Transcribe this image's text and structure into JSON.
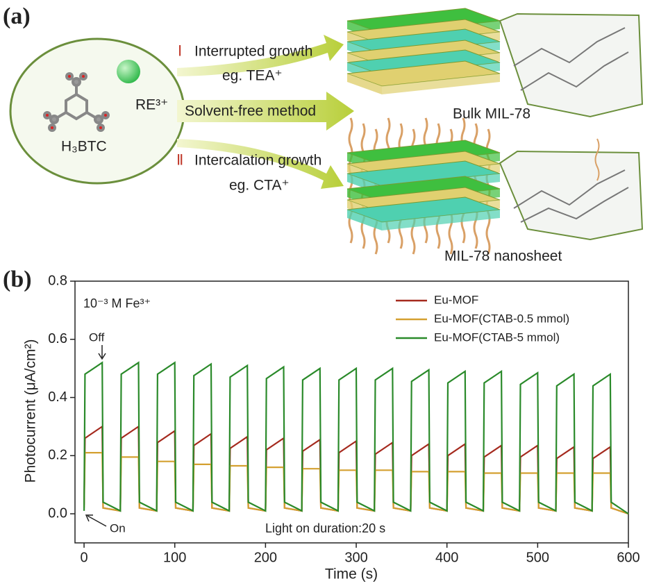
{
  "schematic": {
    "panel_label": "(a)",
    "ion": "RE³⁺",
    "linker": "H₃BTC",
    "route_1": {
      "numeral": "Ⅰ",
      "label": "Interrupted growth",
      "example": "eg. TEA⁺"
    },
    "route_middle": "Solvent-free method",
    "route_2": {
      "numeral": "Ⅱ",
      "label": "Intercalation growth",
      "example": "eg. CTA⁺"
    },
    "product_1": "Bulk MIL-78",
    "product_2": "MIL-78 nanosheet"
  },
  "chart_data": {
    "type": "line",
    "panel_label": "(b)",
    "x_label": "Time (s)",
    "y_label": "Photocurrent (μA/cm²)",
    "xlim": [
      -10,
      600
    ],
    "ylim": [
      -0.1,
      0.8
    ],
    "xticks": [
      0,
      100,
      200,
      300,
      400,
      500,
      600
    ],
    "yticks": [
      {
        "value": 0,
        "label": "0.0"
      },
      0.2,
      0.4,
      0.6,
      0.8
    ],
    "legend": "upper right",
    "annotations": [
      "10⁻³ M Fe³⁺",
      "Off",
      "On",
      "Light on duration:20 s"
    ],
    "x": [
      0,
      1,
      20,
      21,
      40,
      41,
      60,
      61,
      80,
      81,
      100,
      101,
      120,
      121,
      140,
      141,
      160,
      161,
      180,
      181,
      200,
      201,
      220,
      221,
      240,
      241,
      260,
      261,
      280,
      281,
      300,
      301,
      320,
      321,
      340,
      341,
      360,
      361,
      380,
      381,
      400,
      401,
      420,
      421,
      440,
      441,
      460,
      461,
      480,
      481,
      500,
      501,
      520,
      521,
      540,
      541,
      560,
      561,
      580,
      581,
      600
    ],
    "series": [
      {
        "name": "Eu-MOF",
        "color": "#a52a1e",
        "values": [
          0.03,
          0.26,
          0.3,
          0.02,
          0.01,
          0.26,
          0.3,
          0.02,
          0.01,
          0.245,
          0.285,
          0.02,
          0.01,
          0.235,
          0.275,
          0.02,
          0.01,
          0.225,
          0.265,
          0.02,
          0.01,
          0.22,
          0.26,
          0.02,
          0.01,
          0.215,
          0.255,
          0.02,
          0.01,
          0.21,
          0.25,
          0.02,
          0.01,
          0.205,
          0.245,
          0.02,
          0.01,
          0.2,
          0.24,
          0.02,
          0.01,
          0.2,
          0.24,
          0.02,
          0.01,
          0.195,
          0.235,
          0.02,
          0.01,
          0.195,
          0.235,
          0.02,
          0.01,
          0.19,
          0.23,
          0.02,
          0.01,
          0.19,
          0.23,
          0.02,
          0.0
        ]
      },
      {
        "name": "Eu-MOF(CTAB-0.5 mmol)",
        "color": "#d4a030",
        "values": [
          0.02,
          0.21,
          0.21,
          0.02,
          0.01,
          0.195,
          0.195,
          0.02,
          0.01,
          0.18,
          0.18,
          0.02,
          0.01,
          0.17,
          0.17,
          0.02,
          0.01,
          0.165,
          0.165,
          0.02,
          0.01,
          0.16,
          0.16,
          0.02,
          0.01,
          0.155,
          0.155,
          0.02,
          0.01,
          0.15,
          0.15,
          0.02,
          0.01,
          0.15,
          0.15,
          0.02,
          0.01,
          0.145,
          0.145,
          0.02,
          0.01,
          0.145,
          0.145,
          0.02,
          0.01,
          0.14,
          0.14,
          0.02,
          0.01,
          0.14,
          0.14,
          0.02,
          0.01,
          0.14,
          0.14,
          0.02,
          0.01,
          0.14,
          0.14,
          0.02,
          0.0
        ]
      },
      {
        "name": "Eu-MOF(CTAB-5 mmol)",
        "color": "#2a8a2a",
        "values": [
          0.01,
          0.48,
          0.52,
          0.04,
          0.01,
          0.48,
          0.52,
          0.04,
          0.01,
          0.48,
          0.52,
          0.04,
          0.01,
          0.475,
          0.515,
          0.04,
          0.01,
          0.47,
          0.51,
          0.04,
          0.01,
          0.465,
          0.505,
          0.04,
          0.01,
          0.46,
          0.5,
          0.04,
          0.01,
          0.46,
          0.5,
          0.04,
          0.01,
          0.46,
          0.5,
          0.04,
          0.01,
          0.455,
          0.495,
          0.04,
          0.01,
          0.45,
          0.49,
          0.04,
          0.01,
          0.45,
          0.49,
          0.04,
          0.01,
          0.445,
          0.485,
          0.04,
          0.01,
          0.44,
          0.48,
          0.04,
          0.01,
          0.44,
          0.48,
          0.04,
          0.0
        ]
      }
    ]
  }
}
